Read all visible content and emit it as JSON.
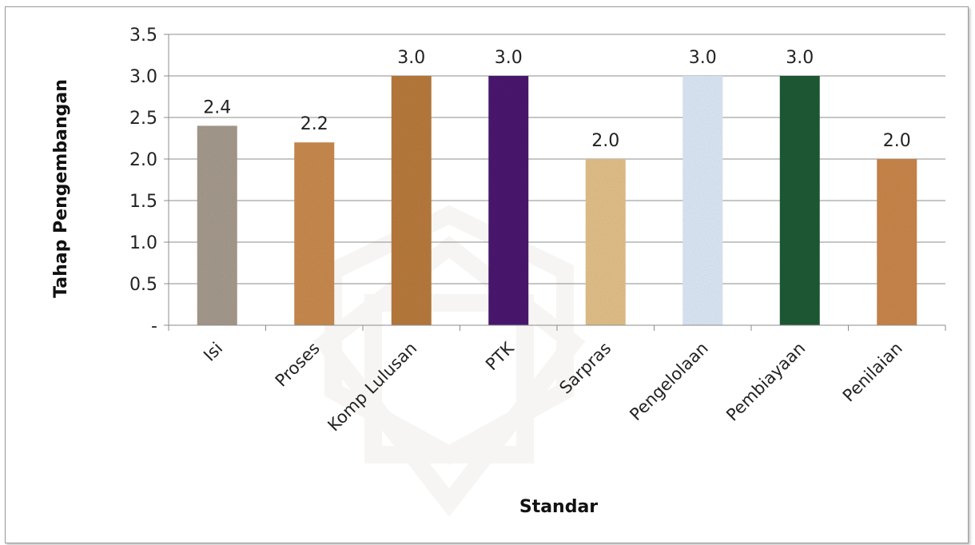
{
  "chart_data": {
    "type": "bar",
    "title": "",
    "xlabel": "Standar",
    "ylabel": "Tahap Pengembangan",
    "categories": [
      "Isi",
      "Proses",
      "Komp Lulusan",
      "PTK",
      "Sarpras",
      "Pengelolaan",
      "Pembiayaan",
      "Penilaian"
    ],
    "values": [
      2.4,
      2.2,
      3.0,
      3.0,
      2.0,
      3.0,
      3.0,
      2.0
    ],
    "data_labels": [
      "2.4",
      "2.2",
      "3.0",
      "3.0",
      "2.0",
      "3.0",
      "3.0",
      "2.0"
    ],
    "ylim": [
      0,
      3.5
    ],
    "yticks": [
      {
        "value": 0,
        "label": "-"
      },
      {
        "value": 0.5,
        "label": "0.5"
      },
      {
        "value": 1.0,
        "label": "1.0"
      },
      {
        "value": 1.5,
        "label": "1.5"
      },
      {
        "value": 2.0,
        "label": "2.0"
      },
      {
        "value": 2.5,
        "label": "2.5"
      },
      {
        "value": 3.0,
        "label": "3.0"
      },
      {
        "value": 3.5,
        "label": "3.5"
      }
    ],
    "grid": true,
    "legend": "none",
    "bar_colors": [
      "#a69a8e",
      "#c98a4e",
      "#b87a3c",
      "#4a1670",
      "#e3c08a",
      "#dce8f6",
      "#1d5a34",
      "#c9864a"
    ]
  }
}
